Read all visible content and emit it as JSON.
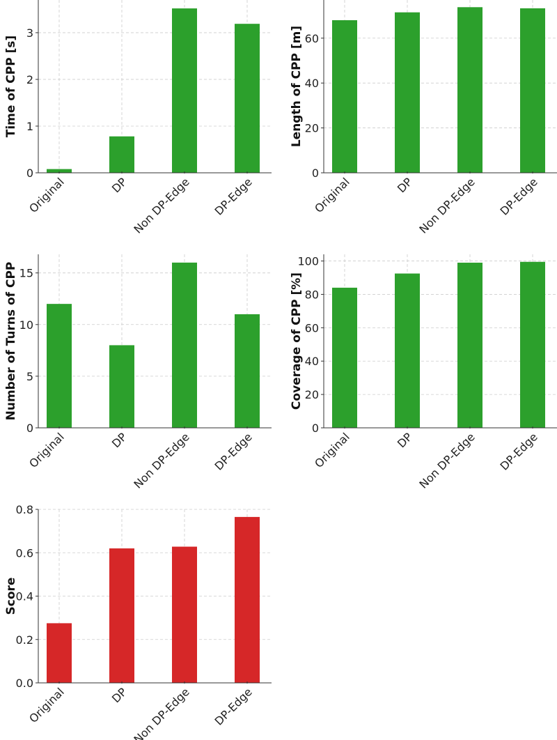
{
  "chart_data": [
    {
      "type": "bar",
      "categories": [
        "Original",
        "DP",
        "Non DP-Edge",
        "DP-Edge"
      ],
      "values": [
        0.08,
        0.78,
        3.52,
        3.19
      ],
      "title": "",
      "xlabel": "",
      "ylabel": "Time of CPP [s]",
      "ylim": [
        0,
        3.7
      ],
      "yticks": [
        0,
        1,
        2,
        3
      ],
      "ytick_labels": [
        "0",
        "1",
        "2",
        "3"
      ],
      "grid": true,
      "color": "#2ca02c"
    },
    {
      "type": "bar",
      "categories": [
        "Original",
        "DP",
        "Non DP-Edge",
        "DP-Edge"
      ],
      "values": [
        68,
        71.5,
        73.8,
        73.3
      ],
      "title": "",
      "xlabel": "",
      "ylabel": "Length of CPP [m]",
      "ylim": [
        0,
        77
      ],
      "yticks": [
        0,
        20,
        40,
        60
      ],
      "ytick_labels": [
        "0",
        "20",
        "40",
        "60"
      ],
      "grid": true,
      "color": "#2ca02c"
    },
    {
      "type": "bar",
      "categories": [
        "Original",
        "DP",
        "Non DP-Edge",
        "DP-Edge"
      ],
      "values": [
        12,
        8,
        16,
        11
      ],
      "title": "",
      "xlabel": "",
      "ylabel": "Number of Turns of CPP",
      "ylim": [
        0,
        16.8
      ],
      "yticks": [
        0,
        5,
        10,
        15
      ],
      "ytick_labels": [
        "0",
        "5",
        "10",
        "15"
      ],
      "grid": true,
      "color": "#2ca02c"
    },
    {
      "type": "bar",
      "categories": [
        "Original",
        "DP",
        "Non DP-Edge",
        "DP-Edge"
      ],
      "values": [
        84,
        92.5,
        99,
        99.5
      ],
      "title": "",
      "xlabel": "",
      "ylabel": "Coverage of CPP [%]",
      "ylim": [
        0,
        104
      ],
      "yticks": [
        0,
        20,
        40,
        60,
        80,
        100
      ],
      "ytick_labels": [
        "0",
        "20",
        "40",
        "60",
        "80",
        "100"
      ],
      "grid": true,
      "color": "#2ca02c"
    },
    {
      "type": "bar",
      "categories": [
        "Original",
        "DP",
        "Non DP-Edge",
        "DP-Edge"
      ],
      "values": [
        0.275,
        0.62,
        0.628,
        0.765
      ],
      "title": "",
      "xlabel": "",
      "ylabel": "Score",
      "ylim": [
        0,
        0.8
      ],
      "yticks": [
        0,
        0.2,
        0.4,
        0.6,
        0.8
      ],
      "ytick_labels": [
        "0.0",
        "0.2",
        "0.4",
        "0.6",
        "0.8"
      ],
      "grid": true,
      "color": "#d62728"
    }
  ]
}
